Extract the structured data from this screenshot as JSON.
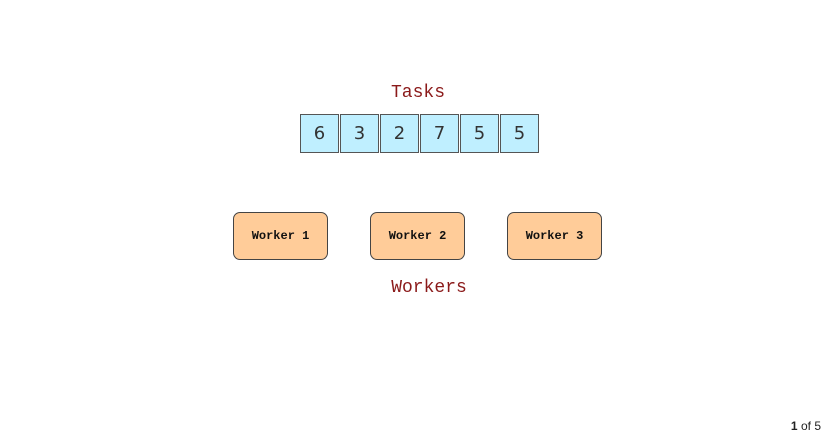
{
  "diagram": {
    "tasks_title": "Tasks",
    "tasks": [
      "6",
      "3",
      "2",
      "7",
      "5",
      "5"
    ],
    "workers": [
      "Worker 1",
      "Worker 2",
      "Worker 3"
    ],
    "workers_title": "Workers",
    "colors": {
      "task_fill": "#bfefff",
      "worker_fill": "#ffcc99",
      "title_text": "#8b1a1a"
    }
  },
  "pager": {
    "current": "1",
    "separator": "of",
    "total": "5"
  }
}
